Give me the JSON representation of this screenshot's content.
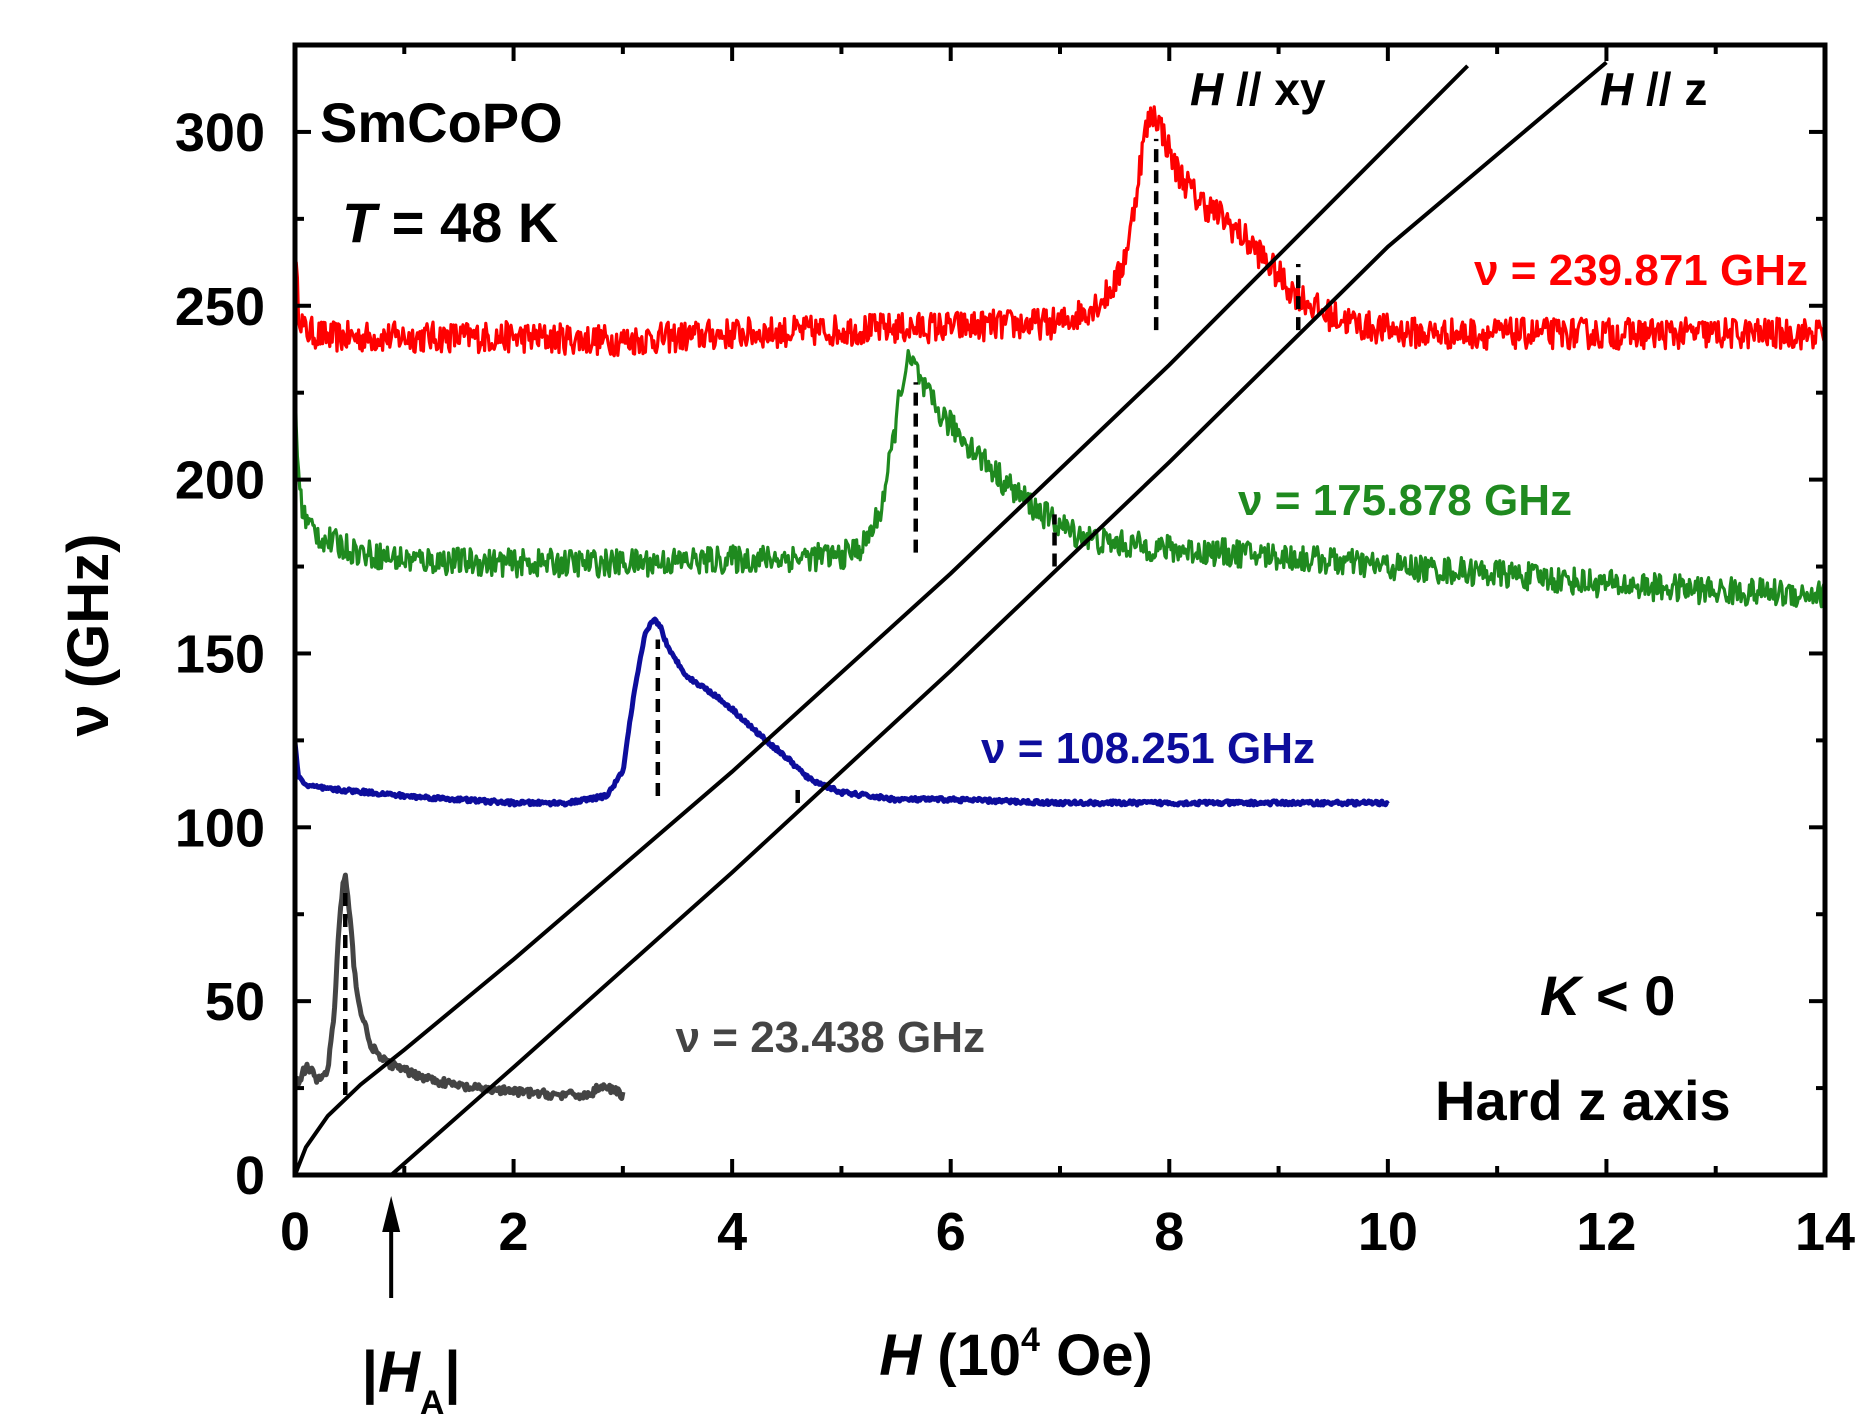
{
  "chart_data": {
    "type": "line",
    "title": "",
    "xlabel": {
      "italic": "H",
      "pre": " (10",
      "sup": "4",
      "post": " Oe)"
    },
    "ylabel": "ν (GHz)",
    "xlim": [
      0,
      14
    ],
    "ylim": [
      0,
      325
    ],
    "x_ticks": [
      0,
      2,
      4,
      6,
      8,
      10,
      12,
      14
    ],
    "y_ticks": [
      0,
      50,
      100,
      150,
      200,
      250,
      300
    ],
    "grid": false,
    "annotations": {
      "sample": "SmCoPO",
      "temperature": {
        "italic": "T",
        "rest": " = 48 K"
      },
      "anisotropy": {
        "italic": "K",
        "rest": " < 0"
      },
      "axis_note": "Hard z axis",
      "line_xy": {
        "italic": "H",
        "rest": " // xy"
      },
      "line_z": {
        "italic": "H",
        "rest": " // z"
      },
      "ha_marker": {
        "label_pre": "|",
        "italic": "H",
        "sub": "A",
        "label_post": "|",
        "x": 0.88
      }
    },
    "resonance_lines": [
      {
        "name": "H // xy",
        "points": [
          [
            0,
            0
          ],
          [
            0.1,
            8
          ],
          [
            0.3,
            17
          ],
          [
            0.6,
            26
          ],
          [
            1,
            36
          ],
          [
            2,
            62
          ],
          [
            4,
            116
          ],
          [
            6,
            173
          ],
          [
            8,
            233
          ],
          [
            10,
            296
          ],
          [
            10.73,
            319
          ]
        ]
      },
      {
        "name": "H // z",
        "points": [
          [
            0.88,
            0
          ],
          [
            2,
            31
          ],
          [
            4,
            87
          ],
          [
            6,
            145
          ],
          [
            8,
            205
          ],
          [
            10,
            267
          ],
          [
            12,
            320
          ]
        ]
      }
    ],
    "series": [
      {
        "name": "ν = 239.871 GHz",
        "color": "#ff0000",
        "noise": 4.5,
        "x": [
          0,
          0.03,
          0.08,
          0.3,
          1,
          2,
          3,
          4,
          5,
          6,
          7,
          7.2,
          7.4,
          7.55,
          7.65,
          7.72,
          7.78,
          7.84,
          7.88,
          7.94,
          8.05,
          8.25,
          8.5,
          8.8,
          9.1,
          9.4,
          9.8,
          10.3,
          11,
          12,
          13,
          14
        ],
        "y": [
          265,
          250,
          243,
          241,
          241,
          241,
          240,
          242,
          243,
          244,
          245,
          248,
          252,
          259,
          272,
          288,
          300,
          305,
          305,
          300,
          290,
          281,
          275,
          266,
          255,
          248,
          244,
          242,
          242,
          242,
          242,
          242
        ]
      },
      {
        "name": "ν = 175.878 GHz",
        "color": "#1f8a1f",
        "noise": 4,
        "x": [
          0,
          0.02,
          0.05,
          0.1,
          0.25,
          0.6,
          1,
          2,
          3,
          4,
          5,
          5.2,
          5.35,
          5.45,
          5.55,
          5.62,
          5.68,
          5.75,
          5.9,
          6.2,
          6.5,
          6.8,
          7.1,
          7.4,
          8,
          9,
          10,
          11,
          12,
          13,
          14
        ],
        "y": [
          227,
          208,
          195,
          188,
          183,
          179,
          177,
          176,
          176,
          177,
          178,
          181,
          190,
          206,
          228,
          234,
          232,
          226,
          219,
          209,
          199,
          191,
          185,
          182,
          180,
          178,
          175,
          173,
          170,
          168,
          167
        ]
      },
      {
        "name": "ν = 108.251 GHz",
        "color": "#0d0d9c",
        "noise": 0.6,
        "x": [
          0,
          0.03,
          0.1,
          0.3,
          0.7,
          1,
          2,
          2.5,
          2.85,
          3,
          3.1,
          3.2,
          3.28,
          3.34,
          3.42,
          3.6,
          3.8,
          4,
          4.2,
          4.5,
          4.7,
          5,
          5.5,
          6,
          7,
          8,
          9,
          10
        ],
        "y": [
          124,
          115,
          112,
          111,
          110,
          109,
          107,
          107,
          109,
          116,
          138,
          155,
          160,
          158,
          151,
          143,
          139,
          134,
          128,
          120,
          114,
          110,
          108,
          108,
          107,
          107,
          107,
          107
        ]
      },
      {
        "name": "ν = 23.438 GHz",
        "color": "#444444",
        "noise": 1.2,
        "x": [
          0,
          0.05,
          0.1,
          0.15,
          0.2,
          0.3,
          0.36,
          0.4,
          0.44,
          0.46,
          0.5,
          0.55,
          0.6,
          0.7,
          0.8,
          1,
          1.3,
          1.6,
          2,
          2.4,
          2.7,
          2.8,
          3
        ],
        "y": [
          26,
          28,
          31,
          30,
          27,
          30,
          47,
          70,
          84,
          86,
          75,
          57,
          47,
          37,
          33,
          30,
          27,
          25,
          24,
          23,
          23,
          26,
          23
        ]
      }
    ],
    "series_labels": [
      {
        "text": "ν = 239.871 GHz",
        "color": "#ff0000"
      },
      {
        "text": "ν = 175.878 GHz",
        "color": "#1f8a1f"
      },
      {
        "text": "ν = 108.251 GHz",
        "color": "#0d0d9c"
      },
      {
        "text": "ν = 23.438 GHz",
        "color": "#444444"
      }
    ],
    "dashed_markers": [
      {
        "x": 7.88,
        "y_from": 243,
        "y_to": 298
      },
      {
        "x": 9.18,
        "y_from": 243,
        "y_to": 262
      },
      {
        "x": 5.68,
        "y_from": 179,
        "y_to": 228
      },
      {
        "x": 6.95,
        "y_from": 175,
        "y_to": 190
      },
      {
        "x": 3.32,
        "y_from": 109,
        "y_to": 154
      },
      {
        "x": 4.6,
        "y_from": 107,
        "y_to": 112
      },
      {
        "x": 0.46,
        "y_from": 23,
        "y_to": 82
      }
    ]
  }
}
